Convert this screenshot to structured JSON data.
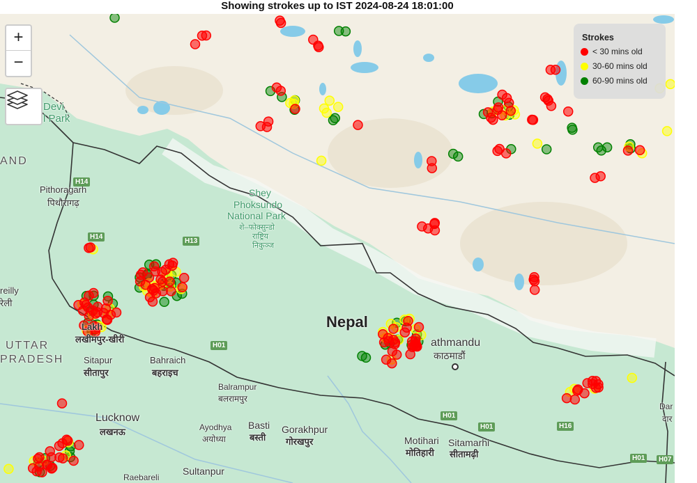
{
  "title": "Showing strokes up to IST 2024-08-24 18:01:00",
  "controls": {
    "zoom_in": "+",
    "zoom_out": "−",
    "layers_icon": "layers-icon"
  },
  "legend": {
    "title": "Strokes",
    "items": [
      {
        "label": "< 30 mins old",
        "color": "#ff0000"
      },
      {
        "label": "30-60 mins old",
        "color": "#ffff00"
      },
      {
        "label": "60-90 mins old",
        "color": "#008000"
      }
    ]
  },
  "places": [
    "Devi",
    "l Park",
    "AND",
    "Pithoragarh",
    "पिथौरागढ़",
    "Shey",
    "Phoksundo",
    "National Park",
    "शे–फोक्सुन्डो",
    "राष्ट्रिय",
    "निकुञ्ज",
    "reilly",
    "रेली",
    "Lakh",
    "लखीमपुर-खीरी",
    "UTTAR",
    "PRADESH",
    "Sitapur",
    "सीतापुर",
    "Bahraich",
    "बहराइच",
    "Nepal",
    "athmandu",
    "काठमाडौं",
    "Balrampur",
    "बलरामपुर",
    "Lucknow",
    "लखनऊ",
    "Ayodhya",
    "अयोध्या",
    "Basti",
    "बस्ती",
    "Gorakhpur",
    "गोरखपुर",
    "Motihari",
    "मोतिहारी",
    "Sitamarhi",
    "सीतामढ़ी",
    "Sultanpur",
    "Raebareli",
    "Dar",
    "दार"
  ],
  "roads": [
    "H14",
    "H14",
    "H13",
    "H01",
    "H01",
    "H01",
    "H16",
    "H01",
    "H07"
  ],
  "strike_clusters": [
    {
      "lat": 31.79,
      "lon": 80.93,
      "red": 0,
      "yellow": 0,
      "green": 1
    },
    {
      "lat": 31.53,
      "lon": 82.0,
      "red": 3,
      "yellow": 0,
      "green": 0
    },
    {
      "lat": 31.77,
      "lon": 83.0,
      "red": 2,
      "yellow": 0,
      "green": 0
    },
    {
      "lat": 31.49,
      "lon": 83.55,
      "red": 3,
      "yellow": 0,
      "green": 0
    },
    {
      "lat": 31.65,
      "lon": 83.86,
      "red": 0,
      "yellow": 0,
      "green": 2
    },
    {
      "lat": 30.9,
      "lon": 82.97,
      "red": 2,
      "yellow": 0,
      "green": 2
    },
    {
      "lat": 30.8,
      "lon": 83.25,
      "red": 1,
      "yellow": 3,
      "green": 2
    },
    {
      "lat": 30.75,
      "lon": 83.7,
      "red": 0,
      "yellow": 4,
      "green": 0
    },
    {
      "lat": 30.59,
      "lon": 83.77,
      "red": 0,
      "yellow": 0,
      "green": 2
    },
    {
      "lat": 30.56,
      "lon": 82.81,
      "red": 3,
      "yellow": 0,
      "green": 0
    },
    {
      "lat": 30.52,
      "lon": 84.1,
      "red": 1,
      "yellow": 0,
      "green": 0
    },
    {
      "lat": 30.15,
      "lon": 83.58,
      "red": 0,
      "yellow": 1,
      "green": 0
    },
    {
      "lat": 30.06,
      "lon": 84.98,
      "red": 2,
      "yellow": 0,
      "green": 0
    },
    {
      "lat": 30.18,
      "lon": 85.35,
      "red": 0,
      "yellow": 0,
      "green": 2
    },
    {
      "lat": 30.22,
      "lon": 85.95,
      "red": 3,
      "yellow": 0,
      "green": 1
    },
    {
      "lat": 30.73,
      "lon": 85.93,
      "red": 10,
      "yellow": 5,
      "green": 4
    },
    {
      "lat": 30.71,
      "lon": 85.66,
      "red": 0,
      "yellow": 0,
      "green": 1
    },
    {
      "lat": 30.6,
      "lon": 86.37,
      "red": 2,
      "yellow": 0,
      "green": 0
    },
    {
      "lat": 30.82,
      "lon": 86.57,
      "red": 4,
      "yellow": 0,
      "green": 0
    },
    {
      "lat": 31.18,
      "lon": 86.57,
      "red": 2,
      "yellow": 0,
      "green": 0
    },
    {
      "lat": 30.68,
      "lon": 86.81,
      "red": 1,
      "yellow": 0,
      "green": 0
    },
    {
      "lat": 30.49,
      "lon": 86.89,
      "red": 0,
      "yellow": 0,
      "green": 2
    },
    {
      "lat": 30.3,
      "lon": 86.47,
      "red": 0,
      "yellow": 1,
      "green": 1
    },
    {
      "lat": 30.31,
      "lon": 87.22,
      "red": 0,
      "yellow": 0,
      "green": 3
    },
    {
      "lat": 30.27,
      "lon": 87.67,
      "red": 2,
      "yellow": 2,
      "green": 2
    },
    {
      "lat": 30.43,
      "lon": 88.11,
      "red": 0,
      "yellow": 1,
      "green": 0
    },
    {
      "lat": 30.98,
      "lon": 88.07,
      "red": 0,
      "yellow": 2,
      "green": 0
    },
    {
      "lat": 29.92,
      "lon": 87.14,
      "red": 2,
      "yellow": 0,
      "green": 0
    },
    {
      "lat": 29.31,
      "lon": 84.99,
      "red": 5,
      "yellow": 0,
      "green": 0
    },
    {
      "lat": 28.69,
      "lon": 86.39,
      "red": 4,
      "yellow": 0,
      "green": 0
    },
    {
      "lat": 28.05,
      "lon": 84.66,
      "red": 25,
      "yellow": 10,
      "green": 8
    },
    {
      "lat": 27.85,
      "lon": 84.16,
      "red": 0,
      "yellow": 0,
      "green": 2
    },
    {
      "lat": 27.75,
      "lon": 84.43,
      "red": 2,
      "yellow": 1,
      "green": 0
    },
    {
      "lat": 27.48,
      "lon": 87.04,
      "red": 10,
      "yellow": 2,
      "green": 0
    },
    {
      "lat": 27.39,
      "lon": 86.84,
      "red": 2,
      "yellow": 1,
      "green": 0
    },
    {
      "lat": 27.56,
      "lon": 87.64,
      "red": 0,
      "yellow": 1,
      "green": 0
    },
    {
      "lat": 28.35,
      "lon": 80.61,
      "red": 25,
      "yellow": 8,
      "green": 10
    },
    {
      "lat": 28.7,
      "lon": 81.49,
      "red": 25,
      "yellow": 12,
      "green": 14
    },
    {
      "lat": 29.13,
      "lon": 80.54,
      "red": 2,
      "yellow": 1,
      "green": 0
    },
    {
      "lat": 27.32,
      "lon": 80.2,
      "red": 1,
      "yellow": 0,
      "green": 0
    },
    {
      "lat": 26.59,
      "lon": 79.93,
      "red": 12,
      "yellow": 2,
      "green": 4
    },
    {
      "lat": 26.73,
      "lon": 80.29,
      "red": 8,
      "yellow": 2,
      "green": 3
    },
    {
      "lat": 26.56,
      "lon": 79.49,
      "red": 0,
      "yellow": 1,
      "green": 0
    }
  ]
}
